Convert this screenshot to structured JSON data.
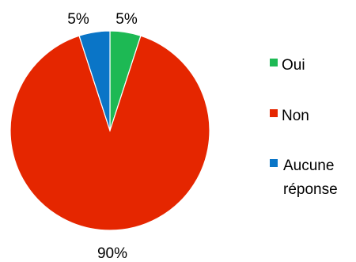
{
  "chart_data": {
    "type": "pie",
    "categories": [
      "Oui",
      "Non",
      "Aucune réponse"
    ],
    "values": [
      5,
      90,
      5
    ],
    "slice_labels": [
      "5%",
      "90%",
      "5%"
    ],
    "colors": [
      "#1db954",
      "#e52600",
      "#0a75c7"
    ],
    "legend": {
      "placement": "right",
      "entries": [
        {
          "label": "Oui",
          "color": "#1db954"
        },
        {
          "label": "Non",
          "color": "#e52600"
        },
        {
          "label_lines": [
            "Aucune",
            "réponse"
          ],
          "color": "#0a75c7"
        }
      ]
    },
    "start": "12 o'clock",
    "direction": "clockwise"
  }
}
